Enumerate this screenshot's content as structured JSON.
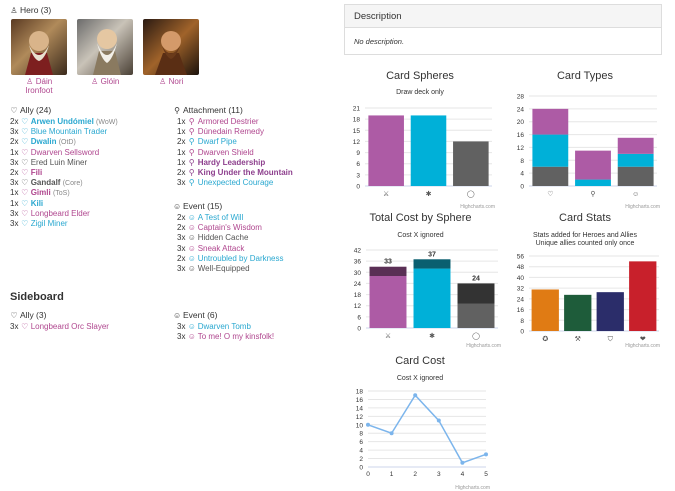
{
  "heroes": {
    "header": "Hero (3)",
    "items": [
      {
        "name": "Dáin Ironfoot",
        "line1": "Dáin",
        "line2": "Ironfoot"
      },
      {
        "name": "Glóin",
        "line1": "Glóin",
        "line2": ""
      },
      {
        "name": "Nori",
        "line1": "Nori",
        "line2": ""
      }
    ]
  },
  "ally": {
    "header": "Ally (24)",
    "rows": [
      {
        "qty": "2x",
        "name": "Arwen Undómiel",
        "set": "(WoW)",
        "sphere": "spirit",
        "bold": true
      },
      {
        "qty": "3x",
        "name": "Blue Mountain Trader",
        "set": "",
        "sphere": "spirit",
        "bold": false
      },
      {
        "qty": "2x",
        "name": "Dwalin",
        "set": "(OtD)",
        "sphere": "spirit",
        "bold": true
      },
      {
        "qty": "1x",
        "name": "Dwarven Sellsword",
        "set": "",
        "sphere": "tactics",
        "bold": false
      },
      {
        "qty": "3x",
        "name": "Ered Luin Miner",
        "set": "",
        "sphere": "neutral",
        "bold": false
      },
      {
        "qty": "2x",
        "name": "Fili",
        "set": "",
        "sphere": "tactics",
        "bold": true
      },
      {
        "qty": "3x",
        "name": "Gandalf",
        "set": "(Core)",
        "sphere": "neutral",
        "bold": true
      },
      {
        "qty": "1x",
        "name": "Gimli",
        "set": "(ToS)",
        "sphere": "tactics",
        "bold": true
      },
      {
        "qty": "1x",
        "name": "Kili",
        "set": "",
        "sphere": "spirit",
        "bold": true
      },
      {
        "qty": "3x",
        "name": "Longbeard Elder",
        "set": "",
        "sphere": "tactics",
        "bold": false
      },
      {
        "qty": "3x",
        "name": "Zigil Miner",
        "set": "",
        "sphere": "spirit",
        "bold": false
      }
    ]
  },
  "attachment": {
    "header": "Attachment (11)",
    "rows": [
      {
        "qty": "1x",
        "name": "Armored Destrier",
        "sphere": "tactics",
        "bold": false
      },
      {
        "qty": "1x",
        "name": "Dúnedain Remedy",
        "sphere": "tactics",
        "bold": false
      },
      {
        "qty": "2x",
        "name": "Dwarf Pipe",
        "sphere": "spirit",
        "bold": false
      },
      {
        "qty": "1x",
        "name": "Dwarven Shield",
        "sphere": "tactics",
        "bold": false
      },
      {
        "qty": "1x",
        "name": "Hardy Leadership",
        "sphere": "leader",
        "bold": true
      },
      {
        "qty": "2x",
        "name": "King Under the Mountain",
        "sphere": "leader",
        "bold": true
      },
      {
        "qty": "3x",
        "name": "Unexpected Courage",
        "sphere": "spirit",
        "bold": false
      }
    ]
  },
  "event": {
    "header": "Event (15)",
    "rows": [
      {
        "qty": "2x",
        "name": "A Test of Will",
        "sphere": "spirit",
        "bold": false
      },
      {
        "qty": "2x",
        "name": "Captain's Wisdom",
        "sphere": "tactics",
        "bold": false
      },
      {
        "qty": "3x",
        "name": "Hidden Cache",
        "sphere": "neutral",
        "bold": false
      },
      {
        "qty": "3x",
        "name": "Sneak Attack",
        "sphere": "tactics",
        "bold": false
      },
      {
        "qty": "2x",
        "name": "Untroubled by Darkness",
        "sphere": "spirit",
        "bold": false
      },
      {
        "qty": "3x",
        "name": "Well-Equipped",
        "sphere": "neutral",
        "bold": false
      }
    ]
  },
  "sideboard": {
    "title": "Sideboard",
    "ally": {
      "header": "Ally (3)",
      "rows": [
        {
          "qty": "3x",
          "name": "Longbeard Orc Slayer",
          "sphere": "tactics"
        }
      ]
    },
    "event": {
      "header": "Event (6)",
      "rows": [
        {
          "qty": "3x",
          "name": "Dwarven Tomb",
          "sphere": "spirit"
        },
        {
          "qty": "3x",
          "name": "To me! O my kinsfolk!",
          "sphere": "tactics"
        }
      ]
    }
  },
  "description": {
    "title": "Description",
    "body": "No description."
  },
  "colors": {
    "tactics": "#ad5ba5",
    "spirit": "#00b0d8",
    "neutral": "#616161",
    "orange": "#e07b14",
    "green": "#1e5c3a",
    "navy": "#2b2d6a",
    "red": "#c8202b"
  },
  "chart_data": [
    {
      "type": "bar",
      "title": "Card Spheres",
      "subtitle": "Draw deck only",
      "categories": [
        "tactics",
        "spirit",
        "neutral"
      ],
      "category_icons": [
        "⚔",
        "✱",
        "◯"
      ],
      "values": [
        19,
        19,
        12
      ],
      "colors": [
        "#ad5ba5",
        "#00b0d8",
        "#616161"
      ],
      "ylim": [
        0,
        21
      ],
      "yticks": [
        0,
        3,
        6,
        9,
        12,
        15,
        18,
        21
      ],
      "credit": "Highcharts.com"
    },
    {
      "type": "bar",
      "stacked": true,
      "title": "Card Types",
      "categories": [
        "ally",
        "attachment",
        "event"
      ],
      "category_icons": [
        "♡",
        "⚲",
        "☺"
      ],
      "series": [
        {
          "values": [
            6,
            0,
            6
          ],
          "color": "#616161"
        },
        {
          "values": [
            10,
            2,
            4
          ],
          "color": "#00b0d8"
        },
        {
          "values": [
            8,
            9,
            5
          ],
          "color": "#ad5ba5"
        }
      ],
      "ylim": [
        0,
        28
      ],
      "yticks": [
        0,
        4,
        8,
        12,
        16,
        20,
        24,
        28
      ],
      "credit": "Highcharts.com"
    },
    {
      "type": "bar",
      "stacked": true,
      "title": "Total Cost by Sphere",
      "subtitle": "Cost X ignored",
      "categories": [
        "tactics",
        "spirit",
        "neutral"
      ],
      "category_icons": [
        "⚔",
        "✱",
        "◯"
      ],
      "totals": [
        "33",
        "37",
        "24"
      ],
      "series": [
        {
          "values": [
            28,
            32,
            13
          ],
          "colors": [
            "#ad5ba5",
            "#00b0d8",
            "#616161"
          ]
        },
        {
          "values": [
            5,
            5,
            11
          ],
          "colors": [
            "#5a2f55",
            "#0a5f70",
            "#333333"
          ]
        }
      ],
      "ylim": [
        0,
        42
      ],
      "yticks": [
        0,
        6,
        12,
        18,
        24,
        30,
        36,
        42
      ],
      "credit": "Highcharts.com"
    },
    {
      "type": "bar",
      "title": "Card Stats",
      "subtitle": "Stats added for Heroes and Allies",
      "subtitle2": "Unique allies counted only once",
      "categories": [
        "willpower",
        "attack",
        "defense",
        "hit points"
      ],
      "category_icons": [
        "✪",
        "⚒",
        "⛉",
        "❤"
      ],
      "values": [
        31,
        27,
        29,
        52
      ],
      "colors": [
        "#e07b14",
        "#1e5c3a",
        "#2b2d6a",
        "#c8202b"
      ],
      "ylim": [
        0,
        56
      ],
      "yticks": [
        0,
        8,
        16,
        24,
        32,
        40,
        48,
        56
      ],
      "credit": "Highcharts.com"
    },
    {
      "type": "line",
      "title": "Card Cost",
      "subtitle": "Cost X ignored",
      "x": [
        0,
        1,
        2,
        3,
        4,
        5
      ],
      "values": [
        10,
        8,
        17,
        11,
        1,
        3
      ],
      "color": "#7cb5ec",
      "ylim": [
        0,
        18
      ],
      "yticks": [
        0,
        2,
        4,
        6,
        8,
        10,
        12,
        14,
        16,
        18
      ],
      "credit": "Highcharts.com"
    }
  ]
}
